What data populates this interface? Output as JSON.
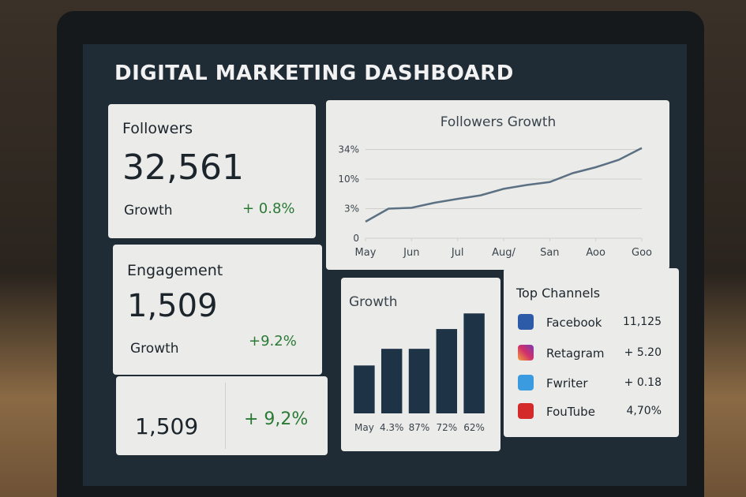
{
  "header": {
    "title": "DIGITAL MARKETING DASHBOARD"
  },
  "cards": [
    {
      "label": "Followers",
      "value": "32,561",
      "sub": "Growth",
      "change": "+ 0.8%"
    },
    {
      "label": "Engagement",
      "value": "1,509",
      "sub": "Growth",
      "change": "+9.2%"
    },
    {
      "value": "1,509",
      "change": "+ 9,2%"
    }
  ],
  "channels": {
    "title": "Top Channels",
    "items": [
      {
        "name": "Facebook",
        "value": "11,125"
      },
      {
        "name": "Retagram",
        "value": "+ 5.20"
      },
      {
        "name": "Fwriter",
        "value": "+ 0.18"
      },
      {
        "name": "FouTube",
        "value": "4,70%"
      }
    ]
  },
  "chart_data": [
    {
      "type": "line",
      "title": "Followers Growth",
      "color": "#5b7183",
      "x": [
        0,
        0.5,
        1,
        1.5,
        2,
        2.5,
        3,
        3.5,
        4,
        4.5,
        5,
        5.5,
        6
      ],
      "values": [
        0.56,
        1.0,
        1.03,
        1.2,
        1.33,
        1.45,
        1.67,
        1.8,
        1.9,
        2.2,
        2.4,
        2.65,
        3.05
      ],
      "xlim": [
        0,
        6
      ],
      "xticks": [
        {
          "value": 0,
          "label": "May"
        },
        {
          "value": 1,
          "label": "Jun"
        },
        {
          "value": 2,
          "label": "Jul"
        },
        {
          "value": 3,
          "label": "Aug/"
        },
        {
          "value": 4,
          "label": "San"
        },
        {
          "value": 5,
          "label": "Aoo"
        },
        {
          "value": 6,
          "label": "Goo"
        }
      ],
      "ylim": [
        0,
        3.2
      ],
      "yticks": [
        {
          "value": 0,
          "label": "0"
        },
        {
          "value": 1,
          "label": "3%"
        },
        {
          "value": 2,
          "label": "10%"
        },
        {
          "value": 3,
          "label": "34%"
        }
      ],
      "grid": true
    },
    {
      "type": "bar",
      "title": "Growth",
      "color": "#1f3346",
      "categories": [
        "May",
        "4.3%",
        "87%",
        "72%",
        "62%"
      ],
      "values": [
        46,
        62,
        62,
        81,
        96
      ],
      "ylim": [
        0,
        100
      ]
    }
  ]
}
